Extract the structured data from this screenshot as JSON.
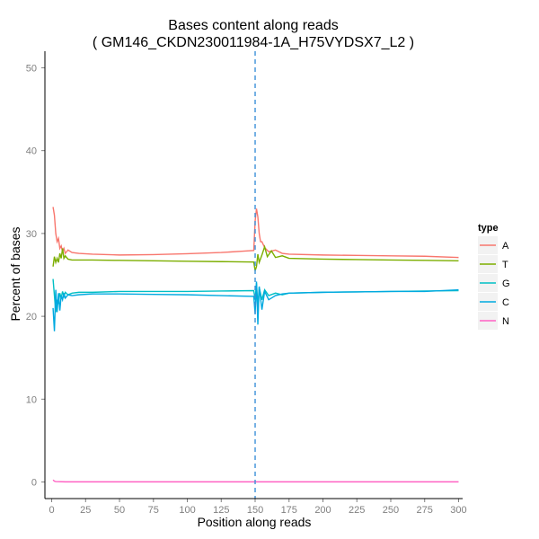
{
  "chart_data": {
    "type": "line",
    "title": "Bases content along reads",
    "subtitle": "( GM146_CKDN230011984-1A_H75VYDSX7_L2 )",
    "xlabel": "Position along reads",
    "ylabel": "Percent of bases",
    "xlim": [
      -5,
      303
    ],
    "ylim": [
      -2,
      52
    ],
    "x_ticks": [
      0,
      25,
      50,
      75,
      100,
      125,
      150,
      175,
      200,
      225,
      250,
      275,
      300
    ],
    "y_ticks": [
      0,
      10,
      20,
      30,
      40,
      50
    ],
    "grid": false,
    "legend": {
      "title": "type",
      "position": "right"
    },
    "vline": {
      "x": 150,
      "color": "#3b8fd8",
      "style": "dashed"
    },
    "series": [
      {
        "name": "A",
        "color": "#f8766d",
        "points": [
          [
            1,
            33.2
          ],
          [
            2,
            32.2
          ],
          [
            3,
            30.0
          ],
          [
            4,
            29.0
          ],
          [
            5,
            29.4
          ],
          [
            6,
            28.2
          ],
          [
            7,
            28.5
          ],
          [
            8,
            27.8
          ],
          [
            9,
            28.2
          ],
          [
            10,
            27.6
          ],
          [
            12,
            28.0
          ],
          [
            15,
            27.7
          ],
          [
            20,
            27.6
          ],
          [
            30,
            27.5
          ],
          [
            50,
            27.4
          ],
          [
            75,
            27.45
          ],
          [
            100,
            27.55
          ],
          [
            125,
            27.7
          ],
          [
            140,
            27.85
          ],
          [
            149,
            27.95
          ],
          [
            150,
            31.5
          ],
          [
            151,
            33.0
          ],
          [
            152,
            32.0
          ],
          [
            153,
            30.0
          ],
          [
            154,
            29.0
          ],
          [
            155,
            29.0
          ],
          [
            157,
            28.3
          ],
          [
            160,
            27.8
          ],
          [
            165,
            28.0
          ],
          [
            170,
            27.6
          ],
          [
            175,
            27.5
          ],
          [
            200,
            27.4
          ],
          [
            225,
            27.35
          ],
          [
            250,
            27.3
          ],
          [
            275,
            27.25
          ],
          [
            300,
            27.1
          ]
        ]
      },
      {
        "name": "T",
        "color": "#7cae00",
        "points": [
          [
            1,
            26.0
          ],
          [
            2,
            27.2
          ],
          [
            3,
            26.5
          ],
          [
            4,
            27.0
          ],
          [
            5,
            26.5
          ],
          [
            6,
            27.6
          ],
          [
            7,
            27.0
          ],
          [
            8,
            28.2
          ],
          [
            9,
            27.0
          ],
          [
            10,
            27.3
          ],
          [
            12,
            26.9
          ],
          [
            15,
            26.8
          ],
          [
            20,
            26.8
          ],
          [
            30,
            26.8
          ],
          [
            50,
            26.75
          ],
          [
            75,
            26.7
          ],
          [
            100,
            26.65
          ],
          [
            125,
            26.6
          ],
          [
            149,
            26.55
          ],
          [
            150,
            25.5
          ],
          [
            151,
            26.0
          ],
          [
            152,
            27.5
          ],
          [
            153,
            26.5
          ],
          [
            155,
            27.4
          ],
          [
            157,
            28.4
          ],
          [
            159,
            27.2
          ],
          [
            162,
            27.9
          ],
          [
            165,
            27.1
          ],
          [
            170,
            27.3
          ],
          [
            175,
            27.0
          ],
          [
            200,
            26.9
          ],
          [
            225,
            26.85
          ],
          [
            250,
            26.8
          ],
          [
            275,
            26.75
          ],
          [
            300,
            26.7
          ]
        ]
      },
      {
        "name": "G",
        "color": "#00bfc4",
        "points": [
          [
            1,
            24.5
          ],
          [
            2,
            22.5
          ],
          [
            3,
            20.5
          ],
          [
            4,
            22.0
          ],
          [
            5,
            21.5
          ],
          [
            6,
            22.8
          ],
          [
            7,
            22.2
          ],
          [
            8,
            23.0
          ],
          [
            9,
            22.4
          ],
          [
            10,
            22.9
          ],
          [
            12,
            22.6
          ],
          [
            15,
            22.8
          ],
          [
            20,
            22.9
          ],
          [
            30,
            22.9
          ],
          [
            50,
            23.0
          ],
          [
            75,
            23.0
          ],
          [
            100,
            23.0
          ],
          [
            125,
            23.05
          ],
          [
            149,
            23.1
          ],
          [
            150,
            22.0
          ],
          [
            151,
            24.0
          ],
          [
            152,
            21.2
          ],
          [
            153,
            23.5
          ],
          [
            155,
            22.0
          ],
          [
            157,
            23.2
          ],
          [
            160,
            22.5
          ],
          [
            165,
            22.8
          ],
          [
            170,
            22.6
          ],
          [
            175,
            22.8
          ],
          [
            200,
            22.9
          ],
          [
            225,
            22.95
          ],
          [
            250,
            23.0
          ],
          [
            275,
            23.05
          ],
          [
            300,
            23.1
          ]
        ]
      },
      {
        "name": "C",
        "color": "#00a9e0",
        "points": [
          [
            1,
            21.0
          ],
          [
            2,
            18.2
          ],
          [
            3,
            23.2
          ],
          [
            4,
            20.5
          ],
          [
            5,
            22.8
          ],
          [
            6,
            20.7
          ],
          [
            7,
            22.5
          ],
          [
            8,
            22.0
          ],
          [
            9,
            22.8
          ],
          [
            10,
            22.2
          ],
          [
            12,
            22.6
          ],
          [
            15,
            22.5
          ],
          [
            20,
            22.6
          ],
          [
            30,
            22.7
          ],
          [
            50,
            22.7
          ],
          [
            75,
            22.65
          ],
          [
            100,
            22.6
          ],
          [
            125,
            22.5
          ],
          [
            149,
            22.4
          ],
          [
            150,
            20.3
          ],
          [
            151,
            24.2
          ],
          [
            152,
            19.0
          ],
          [
            153,
            23.6
          ],
          [
            155,
            20.8
          ],
          [
            157,
            23.0
          ],
          [
            160,
            22.0
          ],
          [
            165,
            22.5
          ],
          [
            170,
            22.7
          ],
          [
            175,
            22.8
          ],
          [
            200,
            22.9
          ],
          [
            225,
            22.95
          ],
          [
            250,
            23.0
          ],
          [
            275,
            23.0
          ],
          [
            300,
            23.2
          ]
        ]
      },
      {
        "name": "N",
        "color": "#ff61c3",
        "points": [
          [
            1,
            0.25
          ],
          [
            2,
            0.1
          ],
          [
            3,
            0.05
          ],
          [
            10,
            0.02
          ],
          [
            300,
            0.02
          ]
        ]
      }
    ]
  }
}
